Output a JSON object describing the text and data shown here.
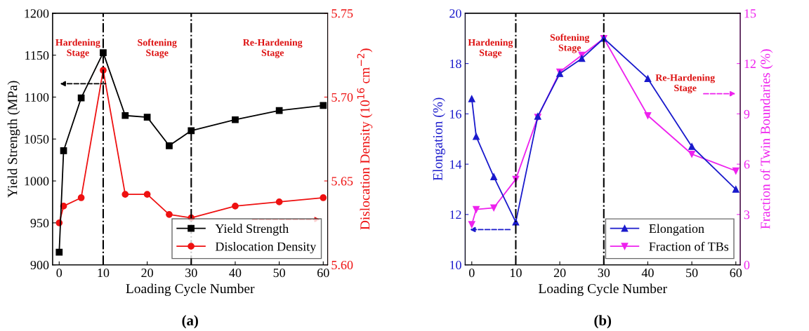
{
  "chart_data": [
    {
      "type": "line",
      "xlabel": "Loading Cycle Number",
      "ylabel": "Yield Strength (MPa)",
      "y2label": "Dislocation Density (10$^{16}$ cm$^{−2}$)",
      "x": [
        0,
        1,
        5,
        10,
        15,
        20,
        25,
        30,
        40,
        50,
        60
      ],
      "series": [
        {
          "name": "Yield Strength",
          "color": "#000000",
          "marker": "square",
          "values": [
            915,
            1036,
            1099,
            1153,
            1078,
            1076,
            1042,
            1060,
            1073,
            1084,
            1090
          ]
        },
        {
          "name": "Dislocation Density",
          "color": "#ee1111",
          "marker": "circle",
          "axis": "y2",
          "values": [
            5.625,
            5.635,
            5.64,
            5.716,
            5.642,
            5.642,
            5.63,
            5.628,
            5.635,
            5.6375,
            5.64
          ]
        }
      ],
      "xlim": [
        -1.5,
        61
      ],
      "xticks": [
        0,
        10,
        20,
        30,
        40,
        50,
        60
      ],
      "ylim": [
        900,
        1200
      ],
      "yticks": [
        900,
        950,
        1000,
        1050,
        1100,
        1150,
        1200
      ],
      "y2lim": [
        5.6,
        5.75
      ],
      "y2ticks": [
        {
          "value": 5.6,
          "label": "5.60"
        },
        {
          "value": 5.65,
          "label": "5.65"
        },
        {
          "value": 5.7,
          "label": "5.70"
        },
        {
          "value": 5.75,
          "label": "5.75"
        }
      ],
      "ref_lines": [
        {
          "axis": "x",
          "value": 10,
          "color": "#000000",
          "line_style": "dashdot"
        },
        {
          "axis": "x",
          "value": 30,
          "color": "#000000",
          "line_style": "dashdot"
        }
      ],
      "annotations": [
        "Hardening\nStage",
        "Softening\nStage",
        "Re-Hardening\nStage",
        "(a)"
      ],
      "legend": "bottom right",
      "grid": false
    },
    {
      "type": "line",
      "xlabel": "Loading Cycle Number",
      "ylabel": "Elongation (%)",
      "y2label": "Fraction of Twin Boundaries (%)",
      "x": [
        0,
        1,
        5,
        10,
        15,
        20,
        25,
        30,
        40,
        50,
        60
      ],
      "series": [
        {
          "name": "Elongation",
          "color": "#1a1acc",
          "marker": "triangle",
          "values": [
            16.6,
            15.1,
            13.5,
            11.7,
            15.9,
            17.6,
            18.2,
            19.0,
            17.4,
            14.7,
            13.0
          ]
        },
        {
          "name": "Fraction of TBs",
          "color": "#ee22ee",
          "marker": "triangle_down",
          "axis": "y2",
          "values": [
            2.4,
            3.3,
            3.4,
            5.1,
            8.8,
            11.5,
            12.5,
            13.5,
            8.9,
            6.6,
            5.6
          ]
        }
      ],
      "xlim": [
        -1.5,
        61
      ],
      "xticks": [
        0,
        10,
        20,
        30,
        40,
        50,
        60
      ],
      "ylim": [
        10,
        20
      ],
      "yticks": [
        10,
        12,
        14,
        16,
        18,
        20
      ],
      "y2lim": [
        0,
        15
      ],
      "y2ticks": [
        0,
        3,
        6,
        9,
        12,
        15
      ],
      "ref_lines": [
        {
          "axis": "x",
          "value": 10,
          "color": "#000000",
          "line_style": "dashdot"
        },
        {
          "axis": "x",
          "value": 30,
          "color": "#000000",
          "line_style": "dashdot"
        }
      ],
      "annotations": [
        "Hardening\nStage",
        "Softening\nStage",
        "Re-Hardening\nStage",
        "(b)"
      ],
      "legend": "bottom right",
      "grid": false
    }
  ]
}
